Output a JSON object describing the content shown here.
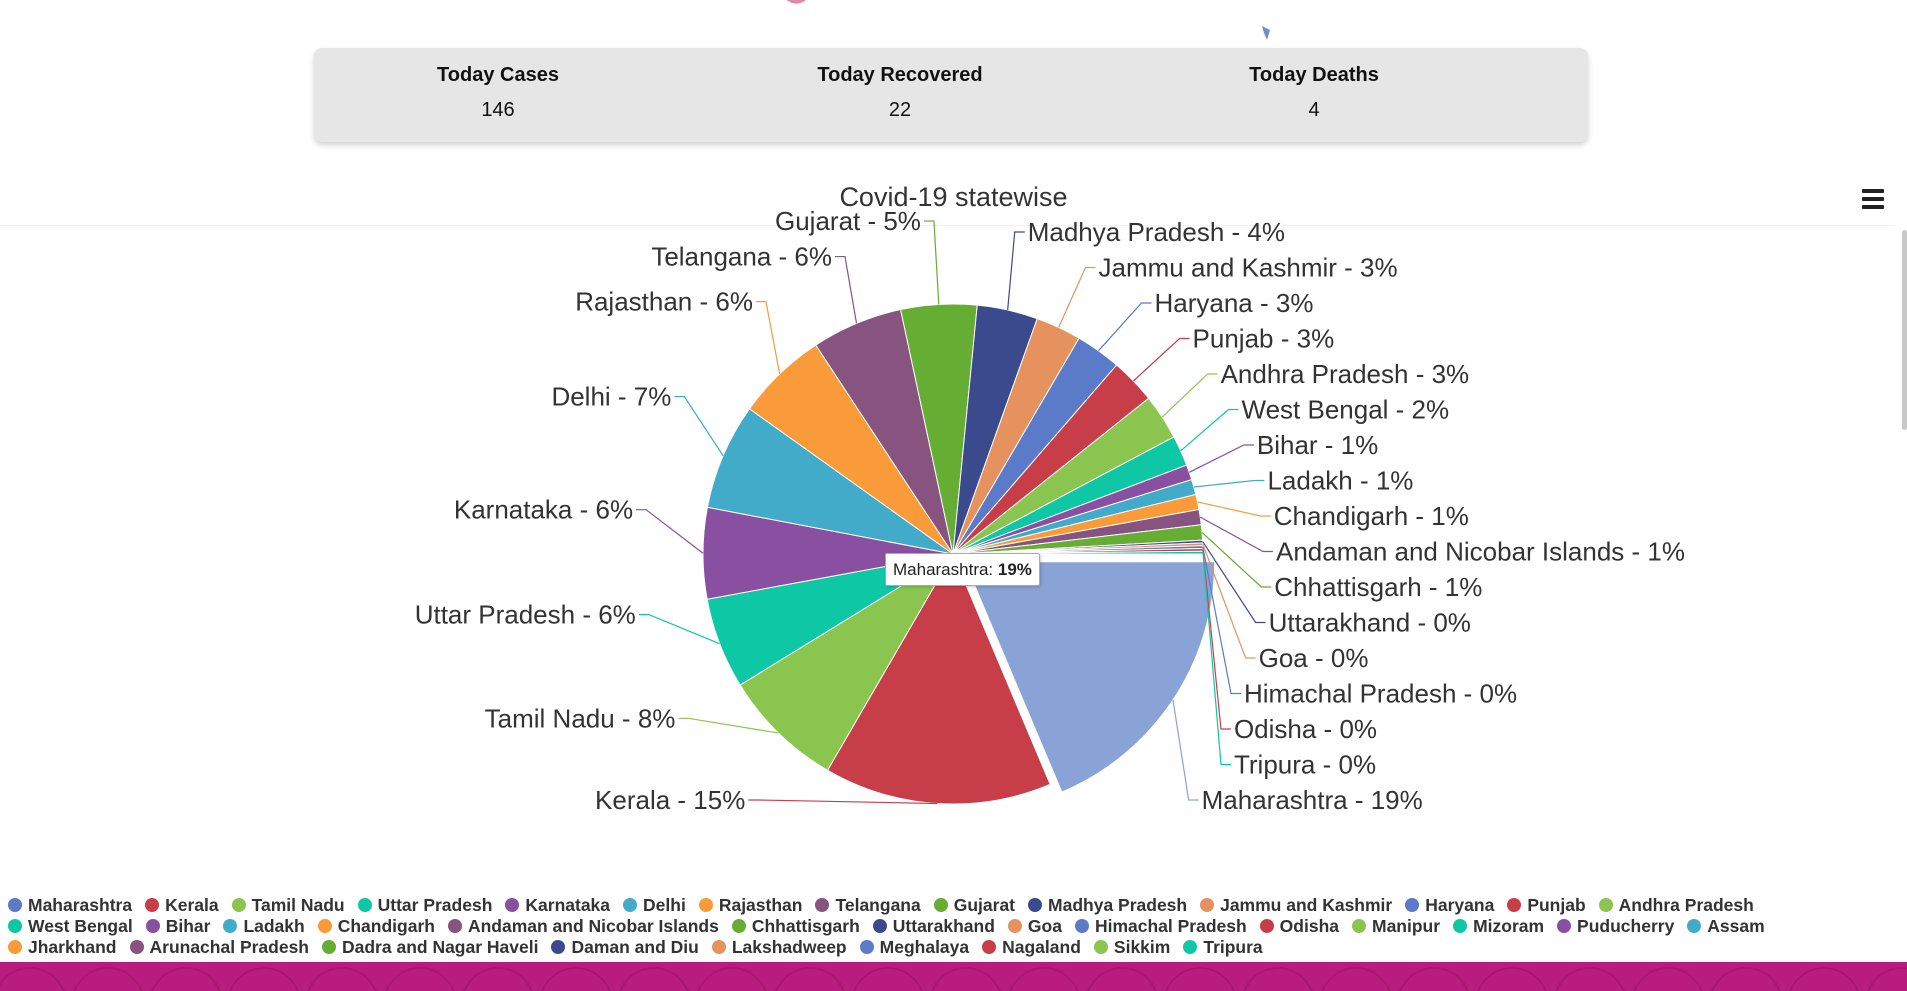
{
  "stats": {
    "today_cases_label": "Today Cases",
    "today_cases_value": "146",
    "today_recovered_label": "Today Recovered",
    "today_recovered_value": "22",
    "today_deaths_label": "Today Deaths",
    "today_deaths_value": "4"
  },
  "menu_icon": "hamburger-menu-icon",
  "tooltip": {
    "label": "Maharashtra: ",
    "value": "19%"
  },
  "colors": {
    "footer": "#b91c7f",
    "card": "#e6e6e6"
  },
  "chart_data": {
    "type": "pie",
    "title": "Covid-19 statewise",
    "start_category": "Maharashtra",
    "selected": "Maharashtra",
    "slices": [
      {
        "name": "Maharashtra",
        "value": 19,
        "color": "#8aa3d6"
      },
      {
        "name": "Kerala",
        "value": 15,
        "color": "#c73e49"
      },
      {
        "name": "Tamil Nadu",
        "value": 8,
        "color": "#8ac64f"
      },
      {
        "name": "Uttar Pradesh",
        "value": 6,
        "color": "#0ec7a4"
      },
      {
        "name": "Karnataka",
        "value": 6,
        "color": "#8950a1"
      },
      {
        "name": "Delhi",
        "value": 7,
        "color": "#42abc9"
      },
      {
        "name": "Rajasthan",
        "value": 6,
        "color": "#f99b38"
      },
      {
        "name": "Telangana",
        "value": 6,
        "color": "#87547f"
      },
      {
        "name": "Gujarat",
        "value": 5,
        "color": "#65ad33"
      },
      {
        "name": "Madhya Pradesh",
        "value": 4,
        "color": "#3b4a8d"
      },
      {
        "name": "Jammu and Kashmir",
        "value": 3,
        "color": "#e5925f"
      },
      {
        "name": "Haryana",
        "value": 3,
        "color": "#5b7ac7"
      },
      {
        "name": "Punjab",
        "value": 3,
        "color": "#c73e49"
      },
      {
        "name": "Andhra Pradesh",
        "value": 3,
        "color": "#8ac64f"
      },
      {
        "name": "West Bengal",
        "value": 2,
        "color": "#0ec7a4"
      },
      {
        "name": "Bihar",
        "value": 1,
        "color": "#8950a1"
      },
      {
        "name": "Ladakh",
        "value": 1,
        "color": "#42abc9"
      },
      {
        "name": "Chandigarh",
        "value": 1,
        "color": "#f99b38"
      },
      {
        "name": "Andaman and Nicobar Islands",
        "value": 1,
        "color": "#87547f"
      },
      {
        "name": "Chhattisgarh",
        "value": 1,
        "color": "#65ad33"
      },
      {
        "name": "Uttarakhand",
        "value": 0,
        "color": "#3b4a8d"
      },
      {
        "name": "Goa",
        "value": 0,
        "color": "#e5925f"
      },
      {
        "name": "Himachal Pradesh",
        "value": 0,
        "color": "#5b7ac7"
      },
      {
        "name": "Odisha",
        "value": 0,
        "color": "#c73e49"
      },
      {
        "name": "Tripura",
        "value": 0,
        "color": "#0ec7a4"
      }
    ],
    "legend": [
      [
        {
          "name": "Maharashtra",
          "color": "#5b7ac7"
        },
        {
          "name": "Kerala",
          "color": "#c73e49"
        },
        {
          "name": "Tamil Nadu",
          "color": "#8ac64f"
        },
        {
          "name": "Uttar Pradesh",
          "color": "#0ec7a4"
        },
        {
          "name": "Karnataka",
          "color": "#8950a1"
        },
        {
          "name": "Delhi",
          "color": "#42abc9"
        },
        {
          "name": "Rajasthan",
          "color": "#f99b38"
        },
        {
          "name": "Telangana",
          "color": "#87547f"
        },
        {
          "name": "Gujarat",
          "color": "#65ad33"
        },
        {
          "name": "Madhya Pradesh",
          "color": "#3b4a8d"
        },
        {
          "name": "Jammu and Kashmir",
          "color": "#e5925f"
        },
        {
          "name": "Haryana",
          "color": "#5b7ac7"
        },
        {
          "name": "Punjab",
          "color": "#c73e49"
        },
        {
          "name": "Andhra Pradesh",
          "color": "#8ac64f"
        }
      ],
      [
        {
          "name": "West Bengal",
          "color": "#0ec7a4"
        },
        {
          "name": "Bihar",
          "color": "#8950a1"
        },
        {
          "name": "Ladakh",
          "color": "#42abc9"
        },
        {
          "name": "Chandigarh",
          "color": "#f99b38"
        },
        {
          "name": "Andaman and Nicobar Islands",
          "color": "#87547f"
        },
        {
          "name": "Chhattisgarh",
          "color": "#65ad33"
        },
        {
          "name": "Uttarakhand",
          "color": "#3b4a8d"
        },
        {
          "name": "Goa",
          "color": "#e5925f"
        },
        {
          "name": "Himachal Pradesh",
          "color": "#5b7ac7"
        },
        {
          "name": "Odisha",
          "color": "#c73e49"
        },
        {
          "name": "Manipur",
          "color": "#8ac64f"
        },
        {
          "name": "Mizoram",
          "color": "#0ec7a4"
        },
        {
          "name": "Puducherry",
          "color": "#8950a1"
        },
        {
          "name": "Assam",
          "color": "#42abc9"
        }
      ],
      [
        {
          "name": "Jharkhand",
          "color": "#f99b38"
        },
        {
          "name": "Arunachal Pradesh",
          "color": "#87547f"
        },
        {
          "name": "Dadra and Nagar Haveli",
          "color": "#65ad33"
        },
        {
          "name": "Daman and Diu",
          "color": "#3b4a8d"
        },
        {
          "name": "Lakshadweep",
          "color": "#e5925f"
        },
        {
          "name": "Meghalaya",
          "color": "#5b7ac7"
        },
        {
          "name": "Nagaland",
          "color": "#c73e49"
        },
        {
          "name": "Sikkim",
          "color": "#8ac64f"
        },
        {
          "name": "Tripura",
          "color": "#0ec7a4"
        }
      ]
    ]
  }
}
